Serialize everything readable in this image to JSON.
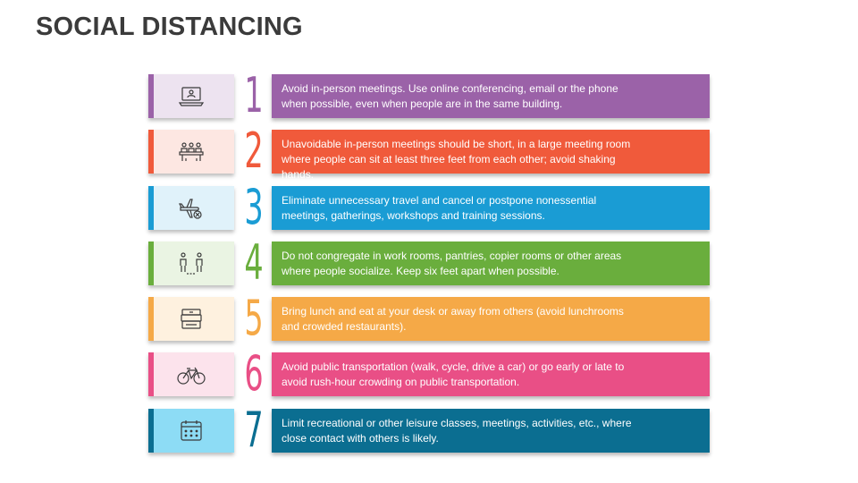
{
  "title": "SOCIAL DISTANCING",
  "items": [
    {
      "number": "1",
      "icon": "laptop-video-icon",
      "color": "#9B62A8",
      "light": "#EDE3F0",
      "text": "Avoid in-person meetings. Use online conferencing, email or the phone when possible, even when people are in the same building."
    },
    {
      "number": "2",
      "icon": "meeting-table-icon",
      "color": "#F05A3B",
      "light": "#FDE7E2",
      "text": "Unavoidable in-person meetings should be short, in a large meeting room where people can sit at least three feet from each other; avoid shaking hands."
    },
    {
      "number": "3",
      "icon": "no-flight-icon",
      "color": "#1A9CD4",
      "light": "#E0F2FA",
      "text": "Eliminate unnecessary travel and cancel or postpone nonessential meetings, gatherings, workshops and training sessions."
    },
    {
      "number": "4",
      "icon": "people-distance-icon",
      "color": "#6AAE3D",
      "light": "#EAF4E3",
      "text": "Do not congregate in work rooms, pantries, copier rooms or other areas where people socialize. Keep six feet apart when possible."
    },
    {
      "number": "5",
      "icon": "lunch-box-icon",
      "color": "#F5A947",
      "light": "#FEF1DF",
      "text": "Bring lunch and eat at your desk or away from others (avoid lunchrooms and crowded restaurants)."
    },
    {
      "number": "6",
      "icon": "bicycle-icon",
      "color": "#E94F86",
      "light": "#FCE3EC",
      "text": "Avoid public transportation (walk, cycle, drive a car) or go early or late to avoid rush-hour crowding on public transportation."
    },
    {
      "number": "7",
      "icon": "calendar-icon",
      "color": "#0B6E91",
      "light": "#8DDCF5",
      "text": "Limit recreational or other leisure classes, meetings, activities, etc., where close contact with others is likely."
    }
  ]
}
